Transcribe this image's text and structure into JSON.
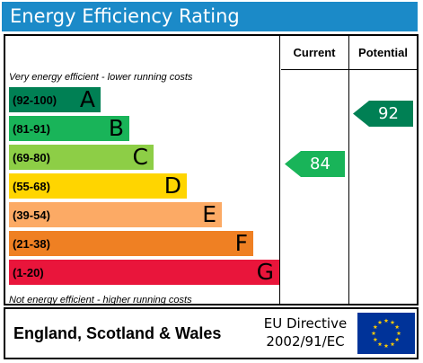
{
  "title": "Energy Efficiency Rating",
  "columns": {
    "current": "Current",
    "potential": "Potential"
  },
  "top_note": "Very energy efficient - lower running costs",
  "bottom_note": "Not energy efficient - higher running costs",
  "bands": [
    {
      "range": "(92-100)",
      "letter": "A",
      "color": "#008054"
    },
    {
      "range": "(81-91)",
      "letter": "B",
      "color": "#19b459"
    },
    {
      "range": "(69-80)",
      "letter": "C",
      "color": "#8dce46"
    },
    {
      "range": "(55-68)",
      "letter": "D",
      "color": "#ffd500"
    },
    {
      "range": "(39-54)",
      "letter": "E",
      "color": "#fcaa65"
    },
    {
      "range": "(21-38)",
      "letter": "F",
      "color": "#ef8023"
    },
    {
      "range": "(1-20)",
      "letter": "G",
      "color": "#e9153b"
    }
  ],
  "current": {
    "value": "84",
    "band": "B",
    "color": "#19b459"
  },
  "potential": {
    "value": "92",
    "band": "A",
    "color": "#008054"
  },
  "footer": {
    "country": "England, Scotland & Wales",
    "directive_line1": "EU Directive",
    "directive_line2": "2002/91/EC",
    "flag_icon": "eu-flag-icon",
    "flag_color": "#003399",
    "star_color": "#ffcc00"
  },
  "title_color": "#1b8ac8"
}
